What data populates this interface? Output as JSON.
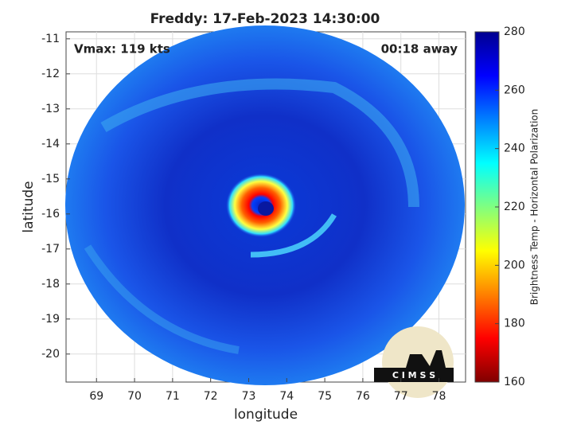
{
  "chart_data": {
    "type": "image",
    "title": "Freddy: 17-Feb-2023 14:30:00",
    "annotations": [
      "Vmax: 119 kts",
      "00:18 away"
    ],
    "xlabel": "longitude",
    "ylabel": "latitude",
    "xlim": [
      68.2,
      78.7
    ],
    "xticks": [
      69,
      70,
      71,
      72,
      73,
      74,
      75,
      76,
      77,
      78
    ],
    "ylim": [
      -20.8,
      -10.8
    ],
    "yticks": [
      -20,
      -19,
      -18,
      -17,
      -16,
      -15,
      -14,
      -13,
      -12,
      -11
    ],
    "grid": true,
    "colorbar": {
      "label": "Brightness Temp - Horizontal Polarization",
      "clim": [
        160,
        280
      ],
      "ticks": [
        160,
        180,
        200,
        220,
        240,
        260,
        280
      ],
      "colormap": [
        "#800000",
        "#ff0000",
        "#ff8000",
        "#ffff00",
        "#80ff80",
        "#00ffff",
        "#0080ff",
        "#0000ff",
        "#000090"
      ]
    },
    "logo": "C I M S S"
  }
}
